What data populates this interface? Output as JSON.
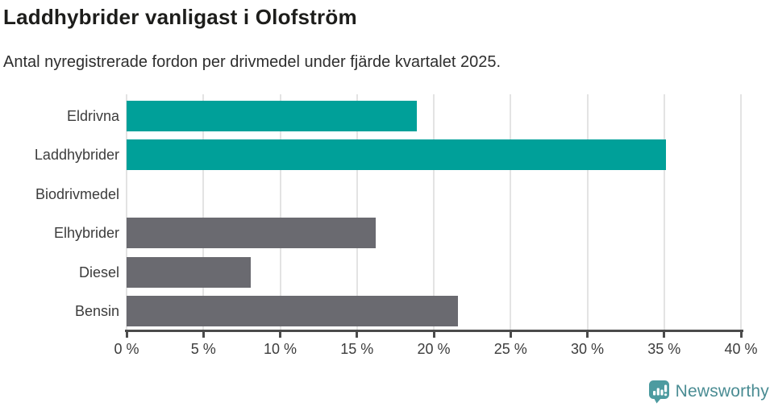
{
  "chart": {
    "title": "Laddhybrider vanligast i Olofström",
    "subtitle": "Antal nyregistrerade fordon per drivmedel under fjärde kvartalet 2025."
  },
  "chart_data": {
    "type": "bar",
    "orientation": "horizontal",
    "title": "Laddhybrider vanligast i Olofström",
    "subtitle": "Antal nyregistrerade fordon per drivmedel under fjärde kvartalet 2025.",
    "categories": [
      "Eldrivna",
      "Laddhybrider",
      "Biodrivmedel",
      "Elhybrider",
      "Diesel",
      "Bensin"
    ],
    "values": [
      18.9,
      35.1,
      0,
      16.2,
      8.1,
      21.6
    ],
    "bar_colors": [
      "#00A099",
      "#00A099",
      "#00A099",
      "#6A6A70",
      "#6A6A70",
      "#6A6A70"
    ],
    "xlim": [
      0,
      40
    ],
    "xticks": [
      0,
      5,
      10,
      15,
      20,
      25,
      30,
      35,
      40
    ],
    "xtick_labels": [
      "0 %",
      "5 %",
      "10 %",
      "15 %",
      "20 %",
      "25 %",
      "30 %",
      "35 %",
      "40 %"
    ],
    "unit": "%",
    "grid": true,
    "legend": "none"
  },
  "colors": {
    "accent_teal": "#00A099",
    "neutral_gray": "#6A6A70",
    "axis": "#4B4B4B",
    "gridline": "#E3E3E3",
    "text": "#3C3C3C",
    "title_text": "#1D1D1B",
    "logo_teal": "#4D9BA0",
    "wordmark_teal": "#4A8C93"
  },
  "footer": {
    "brand": "Newsworthy"
  }
}
